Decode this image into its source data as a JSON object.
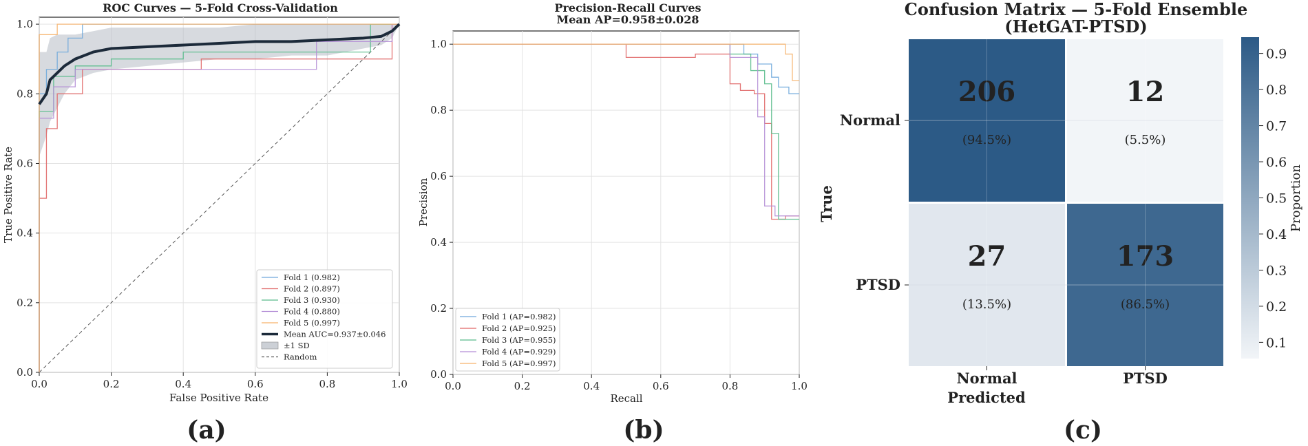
{
  "panel_labels": [
    "(a)",
    "(b)",
    "(c)"
  ],
  "chart_data": [
    {
      "type": "line",
      "title": "ROC Curves — 5-Fold Cross-Validation",
      "xlabel": "False Positive Rate",
      "ylabel": "True Positive Rate",
      "xlim": [
        0,
        1
      ],
      "ylim": [
        0,
        1.02
      ],
      "xticks": [
        "0.0",
        "0.2",
        "0.4",
        "0.6",
        "0.8",
        "1.0"
      ],
      "yticks": [
        "0.0",
        "0.2",
        "0.4",
        "0.6",
        "0.8",
        "1.0"
      ],
      "grid": true,
      "legend_position": "lower-right",
      "series": [
        {
          "name": "Fold 1 (0.982)",
          "color": "#6fa8dc",
          "x": [
            0,
            0,
            0.02,
            0.02,
            0.05,
            0.05,
            0.08,
            0.08,
            0.12,
            0.12,
            1
          ],
          "y": [
            0,
            0.8,
            0.8,
            0.87,
            0.87,
            0.92,
            0.92,
            0.96,
            0.96,
            1.0,
            1.0
          ]
        },
        {
          "name": "Fold 2 (0.897)",
          "color": "#e06666",
          "x": [
            0,
            0,
            0.02,
            0.02,
            0.05,
            0.05,
            0.12,
            0.12,
            0.45,
            0.45,
            0.98,
            0.98,
            1
          ],
          "y": [
            0,
            0.5,
            0.5,
            0.7,
            0.7,
            0.8,
            0.8,
            0.87,
            0.87,
            0.9,
            0.9,
            1.0,
            1.0
          ]
        },
        {
          "name": "Fold 3 (0.930)",
          "color": "#57bb8a",
          "x": [
            0,
            0,
            0.04,
            0.04,
            0.1,
            0.1,
            0.2,
            0.2,
            0.4,
            0.4,
            0.92,
            0.92,
            1
          ],
          "y": [
            0,
            0.75,
            0.75,
            0.85,
            0.85,
            0.88,
            0.88,
            0.9,
            0.9,
            0.92,
            0.92,
            1.0,
            1.0
          ]
        },
        {
          "name": "Fold 4 (0.880)",
          "color": "#b48ed6",
          "x": [
            0,
            0,
            0.04,
            0.04,
            0.1,
            0.1,
            0.77,
            0.77,
            0.98,
            0.98,
            1
          ],
          "y": [
            0,
            0.73,
            0.73,
            0.82,
            0.82,
            0.87,
            0.87,
            0.95,
            0.95,
            1.0,
            1.0
          ]
        },
        {
          "name": "Fold 5 (0.997)",
          "color": "#f6b26b",
          "x": [
            0,
            0,
            0.05,
            0.05,
            1
          ],
          "y": [
            0,
            0.97,
            0.97,
            1.0,
            1.0
          ]
        },
        {
          "name": "Mean AUC=0.937±0.046",
          "color": "#1c2a3a",
          "x": [
            0,
            0.02,
            0.03,
            0.05,
            0.07,
            0.1,
            0.15,
            0.2,
            0.3,
            0.4,
            0.5,
            0.6,
            0.7,
            0.8,
            0.9,
            0.95,
            0.98,
            1.0
          ],
          "y": [
            0.77,
            0.8,
            0.84,
            0.86,
            0.88,
            0.9,
            0.92,
            0.93,
            0.935,
            0.94,
            0.945,
            0.95,
            0.95,
            0.955,
            0.96,
            0.965,
            0.98,
            1.0
          ]
        }
      ],
      "band": {
        "name": "±1 SD",
        "color": "#b7bcc4",
        "x": [
          0,
          0.02,
          0.03,
          0.05,
          0.07,
          0.1,
          0.15,
          0.2,
          0.3,
          0.4,
          0.5,
          0.6,
          0.7,
          0.8,
          0.9,
          0.95,
          0.98,
          1.0
        ],
        "lower": [
          0.62,
          0.68,
          0.72,
          0.76,
          0.8,
          0.84,
          0.86,
          0.87,
          0.88,
          0.89,
          0.9,
          0.9,
          0.91,
          0.91,
          0.93,
          0.94,
          0.96,
          1.0
        ],
        "upper": [
          0.92,
          0.92,
          0.96,
          0.97,
          0.97,
          0.97,
          0.98,
          0.99,
          0.99,
          0.99,
          0.99,
          1.0,
          1.0,
          1.0,
          1.0,
          1.0,
          1.0,
          1.0
        ]
      },
      "reference": {
        "name": "Random",
        "color": "#555555",
        "x": [
          0,
          1
        ],
        "y": [
          0,
          1
        ]
      }
    },
    {
      "type": "line",
      "title": "Precision-Recall Curves",
      "subtitle": "Mean AP=0.958±0.028",
      "xlabel": "Recall",
      "ylabel": "Precision",
      "xlim": [
        0,
        1
      ],
      "ylim": [
        0,
        1.04
      ],
      "xticks": [
        "0.0",
        "0.2",
        "0.4",
        "0.6",
        "0.8",
        "1.0"
      ],
      "yticks": [
        "0.0",
        "0.2",
        "0.4",
        "0.6",
        "0.8",
        "1.0"
      ],
      "grid": true,
      "legend_position": "lower-left",
      "series": [
        {
          "name": "Fold 1 (AP=0.982)",
          "color": "#6fa8dc",
          "x": [
            0,
            0.84,
            0.84,
            0.88,
            0.88,
            0.92,
            0.92,
            0.94,
            0.94,
            0.97,
            0.97,
            1.0
          ],
          "y": [
            1.0,
            1.0,
            0.97,
            0.97,
            0.94,
            0.94,
            0.9,
            0.9,
            0.87,
            0.87,
            0.85,
            0.85
          ]
        },
        {
          "name": "Fold 2 (AP=0.925)",
          "color": "#e06666",
          "x": [
            0,
            0.5,
            0.5,
            0.7,
            0.7,
            0.8,
            0.8,
            0.83,
            0.83,
            0.87,
            0.87,
            0.9,
            0.9,
            0.92,
            0.92,
            0.96,
            0.96,
            1.0
          ],
          "y": [
            1.0,
            1.0,
            0.96,
            0.96,
            0.97,
            0.97,
            0.88,
            0.88,
            0.86,
            0.86,
            0.85,
            0.85,
            0.76,
            0.76,
            0.47,
            0.47,
            0.48,
            0.48
          ]
        },
        {
          "name": "Fold 3 (AP=0.955)",
          "color": "#57bb8a",
          "x": [
            0,
            0.8,
            0.8,
            0.86,
            0.86,
            0.9,
            0.9,
            0.92,
            0.92,
            0.94,
            0.94,
            0.96,
            0.96,
            1.0
          ],
          "y": [
            1.0,
            1.0,
            0.97,
            0.97,
            0.92,
            0.92,
            0.88,
            0.88,
            0.73,
            0.73,
            0.47,
            0.47,
            0.47,
            0.47
          ]
        },
        {
          "name": "Fold 4 (AP=0.929)",
          "color": "#b48ed6",
          "x": [
            0,
            0.8,
            0.8,
            0.88,
            0.88,
            0.9,
            0.9,
            0.93,
            0.93,
            1.0
          ],
          "y": [
            1.0,
            1.0,
            0.96,
            0.96,
            0.78,
            0.78,
            0.51,
            0.51,
            0.48,
            0.48
          ]
        },
        {
          "name": "Fold 5 (AP=0.997)",
          "color": "#f6b26b",
          "x": [
            0,
            0.96,
            0.96,
            0.98,
            0.98,
            1.0
          ],
          "y": [
            1.0,
            1.0,
            0.97,
            0.97,
            0.89,
            0.89
          ]
        }
      ]
    },
    {
      "type": "heatmap",
      "title": "Confusion Matrix — 5-Fold Ensemble",
      "subtitle": "(HetGAT-PTSD)",
      "xlabel": "Predicted",
      "ylabel": "True",
      "x_categories": [
        "Normal",
        "PTSD"
      ],
      "y_categories": [
        "Normal",
        "PTSD"
      ],
      "cells": [
        [
          {
            "count": "206",
            "pct": "(94.5%)",
            "value": 0.945
          },
          {
            "count": "12",
            "pct": "(5.5%)",
            "value": 0.055
          }
        ],
        [
          {
            "count": "27",
            "pct": "(13.5%)",
            "value": 0.135
          },
          {
            "count": "173",
            "pct": "(86.5%)",
            "value": 0.865
          }
        ]
      ],
      "colorbar": {
        "label": "Proportion",
        "range": [
          0.055,
          0.945
        ],
        "ticks": [
          "0.1",
          "0.2",
          "0.3",
          "0.4",
          "0.5",
          "0.6",
          "0.7",
          "0.8",
          "0.9"
        ],
        "low_color": "#ffffff",
        "high_color": "#2c5a86"
      }
    }
  ]
}
